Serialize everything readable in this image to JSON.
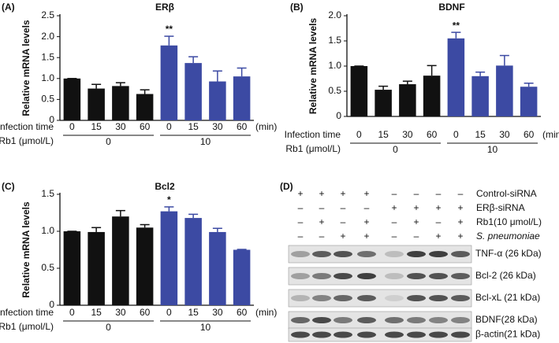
{
  "chart_data": [
    {
      "type": "bar",
      "panel_label": "(A)",
      "title": "ERβ",
      "y_label": "Relative mRNA levels",
      "x_row_label": "Infection time",
      "x_unit": "(min)",
      "group_row_label": "Rb1 (μmol/L)",
      "groups": [
        "0",
        "10"
      ],
      "categories": [
        "0",
        "15",
        "30",
        "60",
        "0",
        "15",
        "30",
        "60"
      ],
      "values": [
        1.0,
        0.76,
        0.82,
        0.63,
        1.79,
        1.37,
        0.93,
        1.05
      ],
      "errors": [
        0,
        0.1,
        0.08,
        0.1,
        0.22,
        0.15,
        0.25,
        0.2
      ],
      "significance": [
        null,
        null,
        null,
        null,
        "**",
        null,
        null,
        null
      ],
      "bar_colors": [
        "#111111",
        "#111111",
        "#111111",
        "#111111",
        "#3c4aa3",
        "#3c4aa3",
        "#3c4aa3",
        "#3c4aa3"
      ],
      "ylim": [
        0,
        2.5
      ],
      "yticks": [
        0,
        0.5,
        {
          "value": 1,
          "label": "1.0"
        },
        1.5,
        {
          "value": 2,
          "label": "2.0"
        },
        2.5
      ]
    },
    {
      "type": "bar",
      "panel_label": "(B)",
      "title": "BDNF",
      "y_label": "Relative mRNA levels",
      "x_row_label": "Infection time",
      "x_unit": "(min)",
      "group_row_label": "Rb1 (μmol/L)",
      "groups": [
        "0",
        "10"
      ],
      "categories": [
        "0",
        "15",
        "30",
        "60",
        "0",
        "15",
        "30",
        "60"
      ],
      "values": [
        1.0,
        0.53,
        0.64,
        0.81,
        1.55,
        0.8,
        1.01,
        0.59
      ],
      "errors": [
        0,
        0.07,
        0.06,
        0.2,
        0.12,
        0.08,
        0.2,
        0.07
      ],
      "significance": [
        null,
        null,
        null,
        null,
        "**",
        null,
        null,
        null
      ],
      "bar_colors": [
        "#111111",
        "#111111",
        "#111111",
        "#111111",
        "#3c4aa3",
        "#3c4aa3",
        "#3c4aa3",
        "#3c4aa3"
      ],
      "ylim": [
        0,
        2
      ],
      "yticks": [
        0,
        0.5,
        {
          "value": 1,
          "label": "1.0"
        },
        1.5,
        {
          "value": 2,
          "label": "2.0"
        }
      ]
    },
    {
      "type": "bar",
      "panel_label": "(C)",
      "title": "Bcl2",
      "y_label": "Relative mRNA levels",
      "x_row_label": "Infection time",
      "x_unit": "(min)",
      "group_row_label": "Rb1 (μmol/L)",
      "groups": [
        "0",
        "10"
      ],
      "categories": [
        "0",
        "15",
        "30",
        "60",
        "0",
        "15",
        "30",
        "60"
      ],
      "values": [
        1.0,
        0.99,
        1.2,
        1.05,
        1.27,
        1.18,
        0.99,
        0.75
      ],
      "errors": [
        0,
        0.06,
        0.08,
        0.04,
        0.06,
        0.05,
        0.05,
        0.005
      ],
      "significance": [
        null,
        null,
        null,
        null,
        "*",
        null,
        null,
        null
      ],
      "bar_colors": [
        "#111111",
        "#111111",
        "#111111",
        "#111111",
        "#3c4aa3",
        "#3c4aa3",
        "#3c4aa3",
        "#3c4aa3"
      ],
      "ylim": [
        0,
        1.5
      ],
      "yticks": [
        0,
        0.5,
        {
          "value": 1,
          "label": "1.0"
        },
        1.5
      ]
    }
  ],
  "blot": {
    "panel_label": "(D)",
    "treatments": [
      {
        "name": "Control-siRNA",
        "signs": [
          "+",
          "+",
          "+",
          "+",
          "–",
          "–",
          "–",
          "–"
        ]
      },
      {
        "name": "ERβ-siRNA",
        "signs": [
          "–",
          "–",
          "–",
          "–",
          "+",
          "+",
          "+",
          "+"
        ]
      },
      {
        "name": "Rb1(10 μmol/L)",
        "signs": [
          "–",
          "+",
          "–",
          "+",
          "–",
          "+",
          "–",
          "+"
        ]
      },
      {
        "name": "S. pneumoniae",
        "signs": [
          "–",
          "–",
          "+",
          "+",
          "–",
          "–",
          "+",
          "+"
        ]
      }
    ],
    "bands": [
      "TNF-α (26 kDa)",
      "Bcl-2 (26 kDa)",
      "Bcl-xL (21 kDa)",
      "BDNF(28 kDa)",
      "β-actin(21 kDa)"
    ]
  }
}
